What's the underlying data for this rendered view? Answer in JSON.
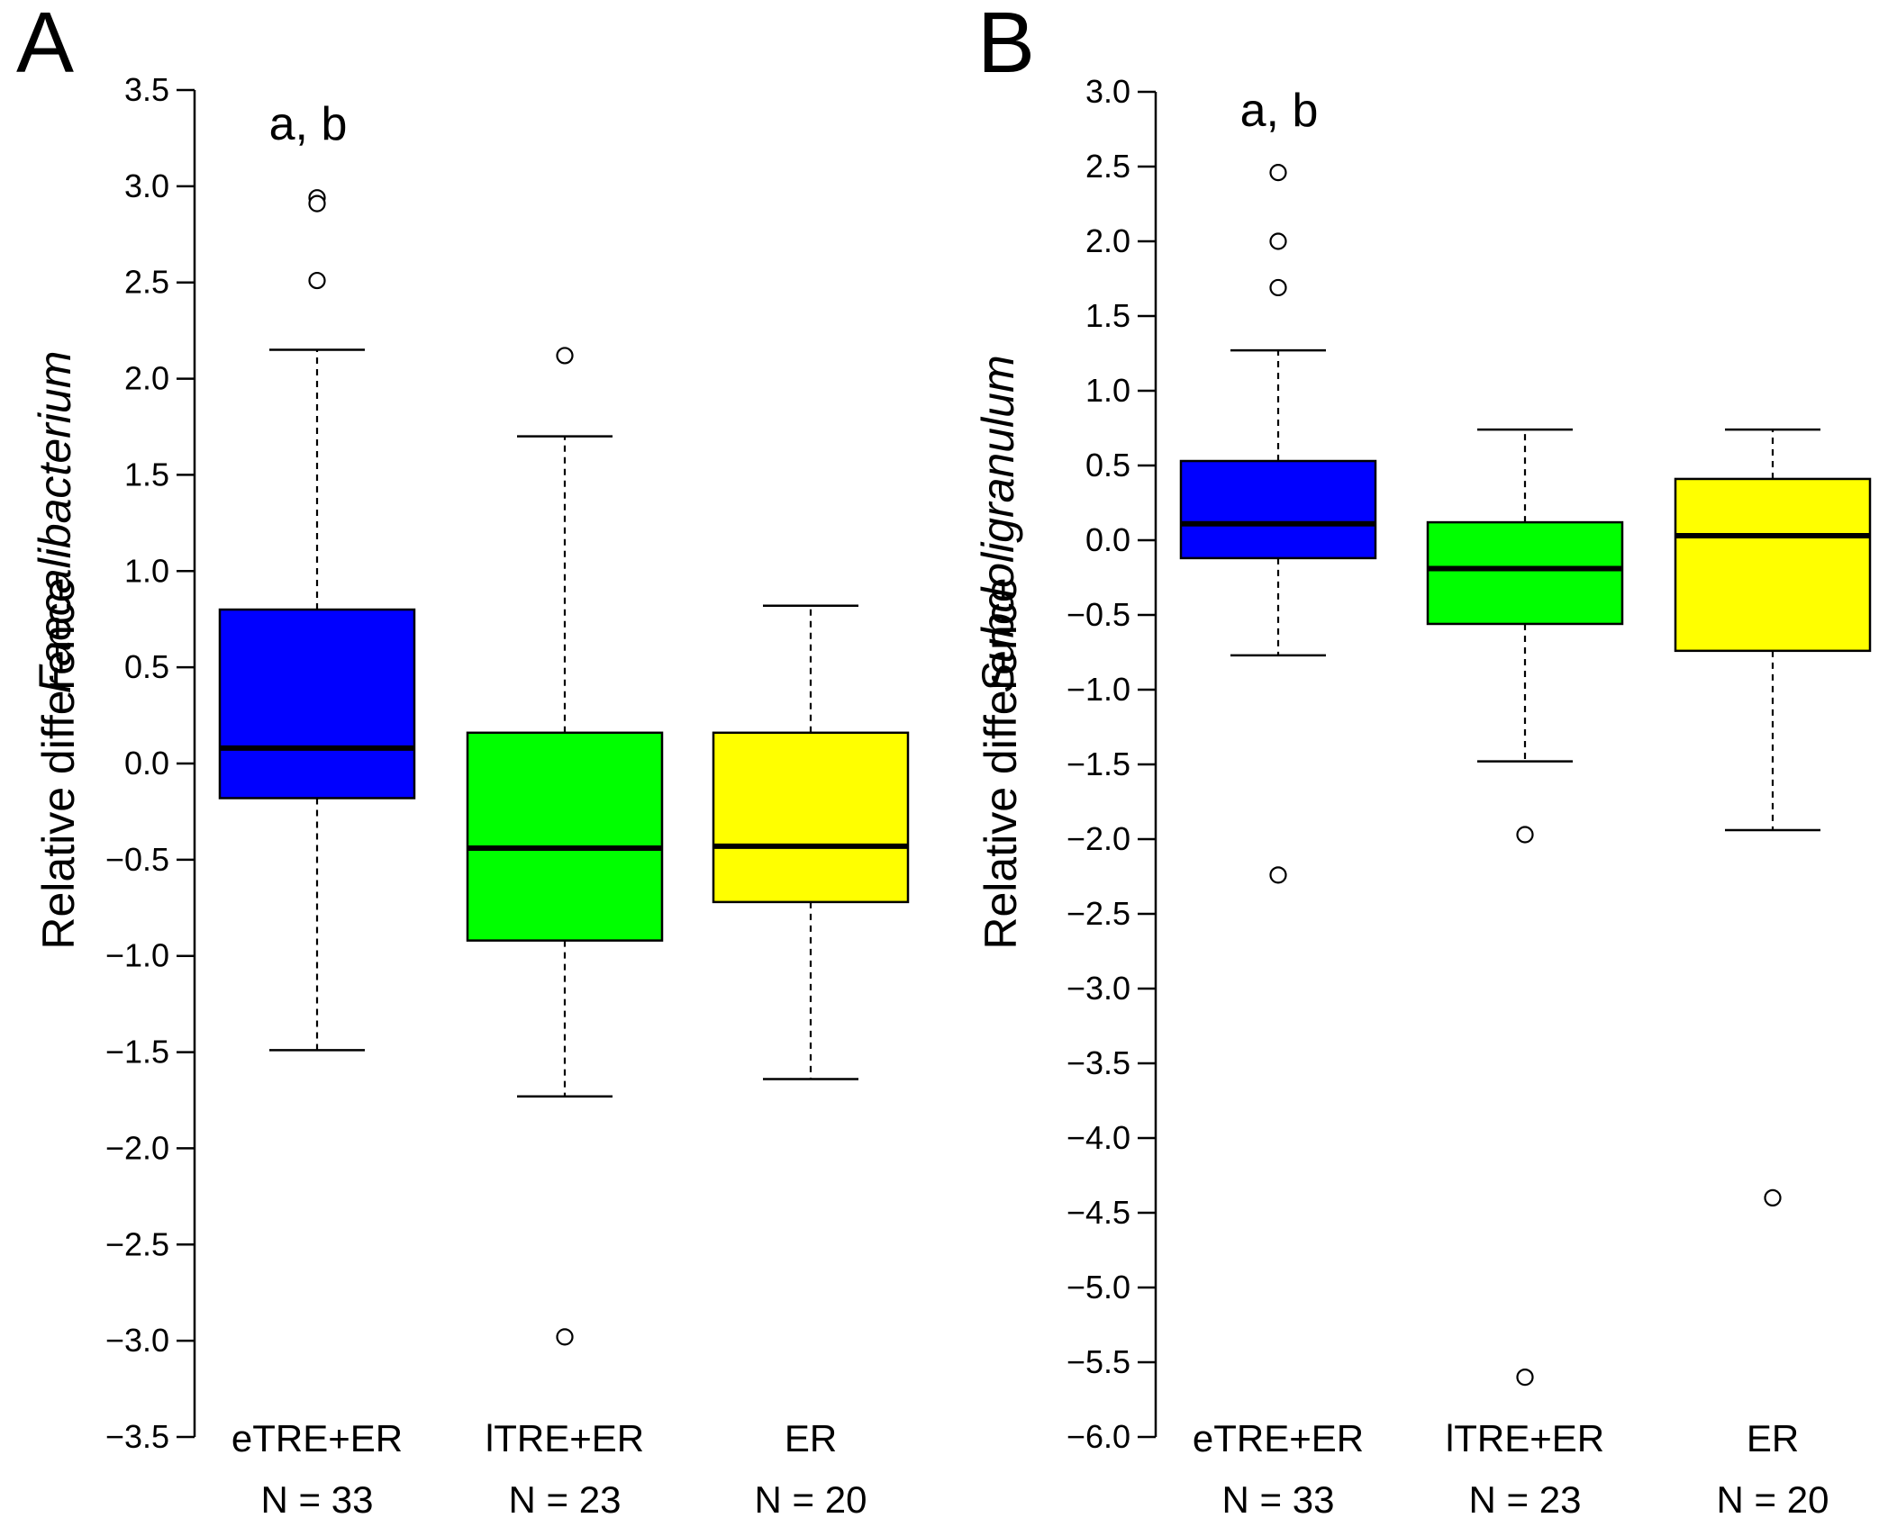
{
  "colors": {
    "eTRE_ER": "#0000ff",
    "lTRE_ER": "#00ff00",
    "ER": "#ffff00",
    "stroke": "#000000",
    "background": "#ffffff"
  },
  "chart_data": [
    {
      "type": "box",
      "panel_label": "A",
      "ylabel_genus": "Faecalibacterium",
      "ylabel": "Relative difference",
      "ylim": [
        -3.5,
        3.5
      ],
      "yticks": [
        "3.5",
        "3.0",
        "2.5",
        "2.0",
        "1.5",
        "1.0",
        "0.5",
        "0.0",
        "−0.5",
        "−1.0",
        "−1.5",
        "−2.0",
        "−2.5",
        "−3.0",
        "−3.5"
      ],
      "annotation": "a, b",
      "groups": [
        {
          "name": "eTRE+ER",
          "n_label": "N = 33",
          "color": "#0000ff",
          "whisker_low": -1.49,
          "q1": -0.18,
          "median": 0.08,
          "q3": 0.8,
          "whisker_high": 2.15,
          "outliers": [
            2.94,
            2.91,
            2.51
          ]
        },
        {
          "name": "lTRE+ER",
          "n_label": "N = 23",
          "color": "#00ff00",
          "whisker_low": -1.73,
          "q1": -0.92,
          "median": -0.44,
          "q3": 0.16,
          "whisker_high": 1.7,
          "outliers": [
            2.12,
            -2.98
          ]
        },
        {
          "name": "ER",
          "n_label": "N = 20",
          "color": "#ffff00",
          "whisker_low": -1.64,
          "q1": -0.72,
          "median": -0.43,
          "q3": 0.16,
          "whisker_high": 0.82,
          "outliers": []
        }
      ]
    },
    {
      "type": "box",
      "panel_label": "B",
      "ylabel_genus": "Subdoligranulum",
      "ylabel": "Relative difference",
      "ylim": [
        -6.0,
        3.0
      ],
      "yticks": [
        "3.0",
        "2.5",
        "2.0",
        "1.5",
        "1.0",
        "0.5",
        "0.0",
        "−0.5",
        "−1.0",
        "−1.5",
        "−2.0",
        "−2.5",
        "−3.0",
        "−3.5",
        "−4.0",
        "−4.5",
        "−5.0",
        "−5.5",
        "−6.0"
      ],
      "annotation": "a, b",
      "groups": [
        {
          "name": "eTRE+ER",
          "n_label": "N = 33",
          "color": "#0000ff",
          "whisker_low": -0.77,
          "q1": -0.12,
          "median": 0.11,
          "q3": 0.53,
          "whisker_high": 1.27,
          "outliers": [
            2.46,
            2.0,
            1.69,
            -2.24
          ]
        },
        {
          "name": "lTRE+ER",
          "n_label": "N = 23",
          "color": "#00ff00",
          "whisker_low": -1.48,
          "q1": -0.56,
          "median": -0.19,
          "q3": 0.12,
          "whisker_high": 0.74,
          "outliers": [
            -1.97,
            -5.6
          ]
        },
        {
          "name": "ER",
          "n_label": "N = 20",
          "color": "#ffff00",
          "whisker_low": -1.94,
          "q1": -0.74,
          "median": 0.03,
          "q3": 0.41,
          "whisker_high": 0.74,
          "outliers": [
            -4.4
          ]
        }
      ]
    }
  ]
}
